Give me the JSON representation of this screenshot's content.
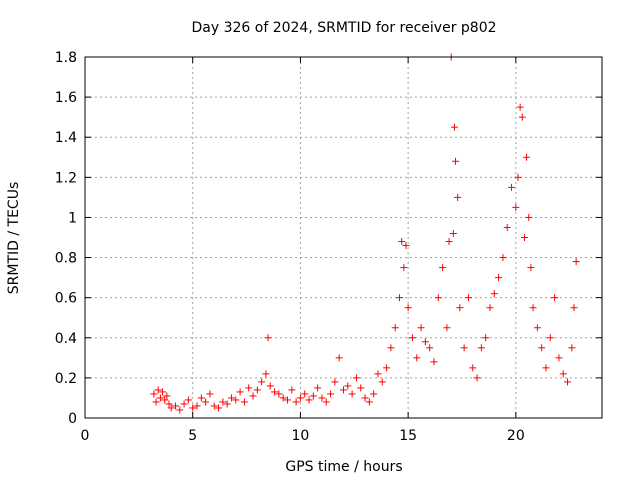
{
  "chart_data": {
    "type": "scatter",
    "title": "Day 326 of 2024, SRMTID for receiver p802",
    "xlabel": "GPS time / hours",
    "ylabel": "SRMTID / TECUs",
    "xlim": [
      0,
      24
    ],
    "ylim": [
      0,
      1.8
    ],
    "xticks": [
      "0",
      "5",
      "10",
      "15",
      "20"
    ],
    "yticks": [
      "0",
      "0.2",
      "0.4",
      "0.6",
      "0.8",
      "1",
      "1.2",
      "1.4",
      "1.6",
      "1.8"
    ],
    "grid": true,
    "marker": "plus",
    "color": "#ff0000",
    "series": [
      {
        "name": "SRMTID",
        "x": [
          3.2,
          3.3,
          3.4,
          3.5,
          3.6,
          3.7,
          3.8,
          3.9,
          4.0,
          4.2,
          4.4,
          4.6,
          4.8,
          5.0,
          5.2,
          5.4,
          5.6,
          5.8,
          6.0,
          6.2,
          6.4,
          6.6,
          6.8,
          7.0,
          7.2,
          7.4,
          7.6,
          7.8,
          8.0,
          8.2,
          8.4,
          8.5,
          8.6,
          8.8,
          9.0,
          9.2,
          9.4,
          9.6,
          9.8,
          10.0,
          10.2,
          10.4,
          10.6,
          10.8,
          11.0,
          11.2,
          11.4,
          11.6,
          11.8,
          12.0,
          12.2,
          12.4,
          12.6,
          12.8,
          13.0,
          13.2,
          13.4,
          13.6,
          13.8,
          14.0,
          14.2,
          14.4,
          14.6,
          14.7,
          14.8,
          14.9,
          15.0,
          15.2,
          15.4,
          15.6,
          15.8,
          16.0,
          16.2,
          16.4,
          16.6,
          16.8,
          16.9,
          17.0,
          17.1,
          17.15,
          17.2,
          17.3,
          17.4,
          17.6,
          17.8,
          18.0,
          18.2,
          18.4,
          18.6,
          18.8,
          19.0,
          19.2,
          19.4,
          19.6,
          19.8,
          20.0,
          20.1,
          20.2,
          20.3,
          20.4,
          20.5,
          20.6,
          20.7,
          20.8,
          21.0,
          21.2,
          21.4,
          21.6,
          21.8,
          22.0,
          22.2,
          22.4,
          22.6,
          22.7,
          22.8
        ],
        "values": [
          0.12,
          0.08,
          0.14,
          0.1,
          0.13,
          0.09,
          0.11,
          0.07,
          0.05,
          0.06,
          0.04,
          0.07,
          0.09,
          0.05,
          0.06,
          0.1,
          0.08,
          0.12,
          0.06,
          0.05,
          0.08,
          0.07,
          0.1,
          0.09,
          0.13,
          0.08,
          0.15,
          0.11,
          0.14,
          0.18,
          0.22,
          0.4,
          0.16,
          0.13,
          0.12,
          0.1,
          0.09,
          0.14,
          0.08,
          0.1,
          0.12,
          0.09,
          0.11,
          0.15,
          0.1,
          0.08,
          0.12,
          0.18,
          0.3,
          0.14,
          0.16,
          0.12,
          0.2,
          0.15,
          0.1,
          0.08,
          0.12,
          0.22,
          0.18,
          0.25,
          0.35,
          0.45,
          0.6,
          0.88,
          0.75,
          0.86,
          0.55,
          0.4,
          0.3,
          0.45,
          0.38,
          0.35,
          0.28,
          0.6,
          0.75,
          0.45,
          0.88,
          1.8,
          0.92,
          1.45,
          1.28,
          1.1,
          0.55,
          0.35,
          0.6,
          0.25,
          0.2,
          0.35,
          0.4,
          0.55,
          0.62,
          0.7,
          0.8,
          0.95,
          1.15,
          1.05,
          1.2,
          1.55,
          1.5,
          0.9,
          1.3,
          1.0,
          0.75,
          0.55,
          0.45,
          0.35,
          0.25,
          0.4,
          0.6,
          0.3,
          0.22,
          0.18,
          0.35,
          0.55,
          0.78
        ]
      }
    ]
  }
}
